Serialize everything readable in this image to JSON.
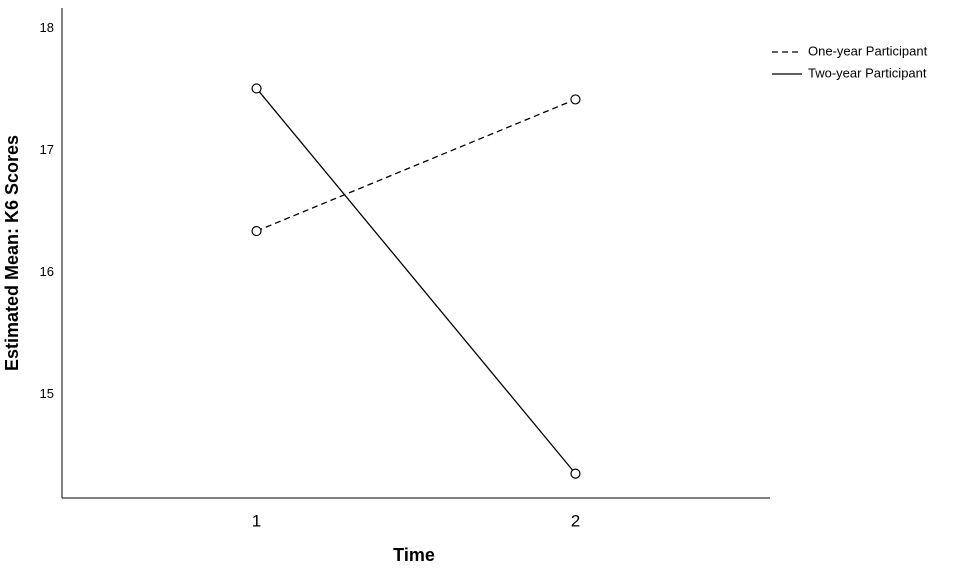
{
  "chart_data": {
    "type": "line",
    "x_label": "Time",
    "y_label": "Estimated Mean: K6 Scores",
    "x": [
      1,
      2
    ],
    "series": [
      {
        "name": "One-year Participant",
        "color": "#000000",
        "linestyle": "dashed",
        "values": [
          16.34,
          17.42
        ]
      },
      {
        "name": "Two-year Participant",
        "color": "#000000",
        "linestyle": "solid",
        "values": [
          17.51,
          14.35
        ]
      }
    ],
    "xlim": [
      0.39,
      2.61
    ],
    "xticks": [
      1,
      2
    ],
    "ylim": [
      14.15,
      18.17
    ],
    "yticks": [
      15,
      16,
      17,
      18
    ],
    "legend": "top-right",
    "marker": "circle"
  }
}
